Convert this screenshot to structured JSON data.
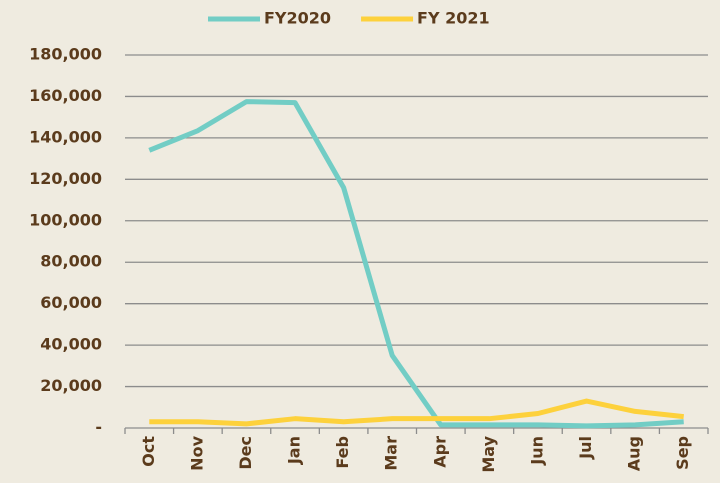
{
  "chart_data": {
    "type": "line",
    "categories": [
      "Oct",
      "Nov",
      "Dec",
      "Jan",
      "Feb",
      "Mar",
      "Apr",
      "May",
      "Jun",
      "Jul",
      "Aug",
      "Sep"
    ],
    "series": [
      {
        "name": "FY2020",
        "color": "#72cdc5",
        "values": [
          134000,
          143500,
          157500,
          157000,
          116000,
          35000,
          1500,
          1500,
          1500,
          1000,
          1500,
          3000
        ]
      },
      {
        "name": "FY 2021",
        "color": "#fdd13c",
        "values": [
          3000,
          3000,
          2000,
          4500,
          3000,
          4500,
          4500,
          4500,
          7000,
          13000,
          8000,
          5500
        ]
      }
    ],
    "ylim": [
      0,
      180000
    ],
    "yticks": [
      {
        "value": 0,
        "label": "-"
      },
      {
        "value": 20000,
        "label": "20,000"
      },
      {
        "value": 40000,
        "label": "40,000"
      },
      {
        "value": 60000,
        "label": "60,000"
      },
      {
        "value": 80000,
        "label": "80,000"
      },
      {
        "value": 100000,
        "label": "100,000"
      },
      {
        "value": 120000,
        "label": "120,000"
      },
      {
        "value": 140000,
        "label": "140,000"
      },
      {
        "value": 160000,
        "label": "160,000"
      },
      {
        "value": 180000,
        "label": "180,000"
      }
    ],
    "grid": true,
    "legend": "top"
  }
}
